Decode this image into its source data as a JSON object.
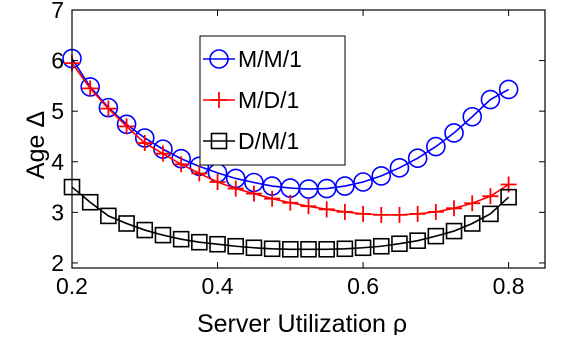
{
  "chart_data": {
    "type": "line",
    "title": "",
    "xlabel": "Server Utilization ρ",
    "ylabel": "Age Δ",
    "xlim": [
      0.2,
      0.85
    ],
    "ylim": [
      1.9,
      7
    ],
    "xticks": [
      0.2,
      0.4,
      0.6,
      0.8
    ],
    "yticks": [
      2,
      3,
      4,
      5,
      6,
      7
    ],
    "xtick_labels": [
      "0.2",
      "0.4",
      "0.6",
      "0.8"
    ],
    "ytick_labels": [
      "2",
      "3",
      "4",
      "5",
      "6",
      "7"
    ],
    "grid": false,
    "legend_position": "top-center",
    "x": [
      0.2,
      0.225,
      0.25,
      0.275,
      0.3,
      0.325,
      0.35,
      0.375,
      0.4,
      0.425,
      0.45,
      0.475,
      0.5,
      0.525,
      0.55,
      0.575,
      0.6,
      0.625,
      0.65,
      0.675,
      0.7,
      0.725,
      0.75,
      0.775,
      0.8
    ],
    "series": [
      {
        "name": "M/M/1",
        "color": "#0000ff",
        "marker": "circle",
        "values": [
          6.04,
          5.48,
          5.07,
          4.74,
          4.47,
          4.25,
          4.06,
          3.91,
          3.78,
          3.67,
          3.59,
          3.52,
          3.48,
          3.46,
          3.47,
          3.52,
          3.6,
          3.72,
          3.88,
          4.07,
          4.3,
          4.57,
          4.89,
          5.23,
          5.43
        ]
      },
      {
        "name": "M/D/1",
        "color": "#ff0000",
        "marker": "plus",
        "values": [
          5.95,
          5.45,
          5.05,
          4.7,
          4.37,
          4.16,
          3.95,
          3.77,
          3.6,
          3.47,
          3.37,
          3.27,
          3.19,
          3.12,
          3.06,
          3.01,
          2.97,
          2.95,
          2.95,
          2.97,
          3.01,
          3.08,
          3.18,
          3.32,
          3.55
        ]
      },
      {
        "name": "D/M/1",
        "color": "#000000",
        "marker": "square",
        "values": [
          3.5,
          3.2,
          2.93,
          2.78,
          2.65,
          2.55,
          2.47,
          2.41,
          2.37,
          2.33,
          2.3,
          2.28,
          2.27,
          2.27,
          2.27,
          2.28,
          2.3,
          2.33,
          2.38,
          2.44,
          2.53,
          2.63,
          2.78,
          2.97,
          3.3
        ]
      }
    ]
  }
}
